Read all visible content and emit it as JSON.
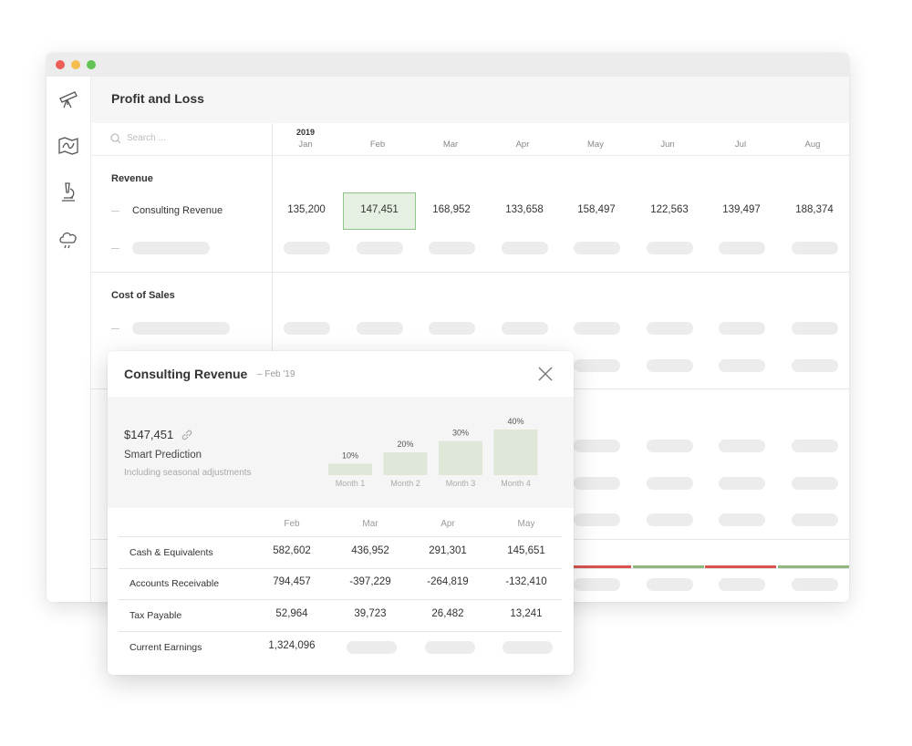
{
  "app": {
    "title": "Profit and Loss",
    "search_placeholder": "Search ..."
  },
  "sidebar": {
    "icons": [
      "telescope-icon",
      "map-icon",
      "microscope-icon",
      "cloud-icon"
    ]
  },
  "grid": {
    "year": "2019",
    "months": [
      "Jan",
      "Feb",
      "Mar",
      "Apr",
      "May",
      "Jun",
      "Jul",
      "Aug"
    ],
    "sections": [
      {
        "label": "Revenue",
        "rows": [
          {
            "label": "Consulting Revenue",
            "values": [
              "135,200",
              "147,451",
              "168,952",
              "133,658",
              "158,497",
              "122,563",
              "139,497",
              "188,374"
            ],
            "selected_index": 1
          }
        ]
      },
      {
        "label": "Cost of Sales"
      }
    ]
  },
  "colors": {
    "accent_green": "#8fc48a",
    "selected_bg": "#e6f0e2",
    "negative_red": "#d9534f",
    "positive_green": "#8fb77e"
  },
  "popup": {
    "title": "Consulting Revenue",
    "subtitle": "– Feb '19",
    "amount": "$147,451",
    "prediction_label": "Smart Prediction",
    "prediction_note": "Including seasonal adjustments",
    "chart_data": {
      "type": "bar",
      "categories": [
        "Month 1",
        "Month 2",
        "Month 3",
        "Month 4"
      ],
      "values": [
        10,
        20,
        30,
        40
      ],
      "labels": [
        "10%",
        "20%",
        "30%",
        "40%"
      ],
      "ylim": [
        0,
        40
      ]
    },
    "table": {
      "headers": [
        "Feb",
        "Mar",
        "Apr",
        "May"
      ],
      "rows": [
        {
          "label": "Cash & Equivalents",
          "values": [
            "582,602",
            "436,952",
            "291,301",
            "145,651"
          ]
        },
        {
          "label": "Accounts Receivable",
          "values": [
            "794,457",
            "-397,229",
            "-264,819",
            "-132,410"
          ]
        },
        {
          "label": "Tax Payable",
          "values": [
            "52,964",
            "39,723",
            "26,482",
            "13,241"
          ]
        },
        {
          "label": "Current Earnings",
          "values": [
            "1,324,096"
          ]
        }
      ]
    }
  }
}
